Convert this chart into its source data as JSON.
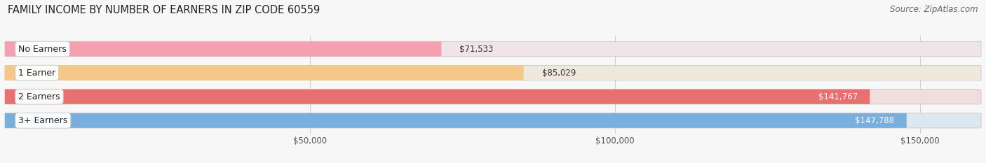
{
  "title": "FAMILY INCOME BY NUMBER OF EARNERS IN ZIP CODE 60559",
  "source": "Source: ZipAtlas.com",
  "categories": [
    "No Earners",
    "1 Earner",
    "2 Earners",
    "3+ Earners"
  ],
  "values": [
    71533,
    85029,
    141767,
    147788
  ],
  "bar_colors": [
    "#f4a0b0",
    "#f5c88a",
    "#e87070",
    "#7aaedd"
  ],
  "bg_colors": [
    "#f0e4e6",
    "#f0e8dc",
    "#f0dede",
    "#dce8f0"
  ],
  "xlim": [
    0,
    160000
  ],
  "xticks": [
    50000,
    100000,
    150000
  ],
  "xtick_labels": [
    "$50,000",
    "$100,000",
    "$150,000"
  ],
  "title_fontsize": 10.5,
  "source_fontsize": 8.5,
  "bar_height": 0.62,
  "background_color": "#f7f7f7"
}
